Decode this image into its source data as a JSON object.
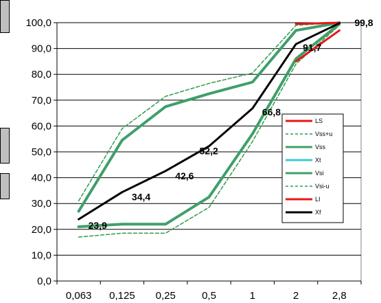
{
  "chart_data": {
    "type": "line",
    "categories": [
      "0,063",
      "0,125",
      "0,25",
      "0,5",
      "1",
      "2",
      "2,8"
    ],
    "y_ticks": [
      "0,0",
      "10,0",
      "20,0",
      "30,0",
      "40,0",
      "50,0",
      "60,0",
      "70,0",
      "80,0",
      "90,0",
      "100,0"
    ],
    "ylim": [
      0,
      100
    ],
    "grid": "horizontal",
    "legend_position": "right",
    "series": [
      {
        "name": "LS",
        "color": "#e8151b",
        "style": "solid",
        "width": 3,
        "values": [
          null,
          null,
          null,
          null,
          null,
          99.5,
          100
        ]
      },
      {
        "name": "Vss+u",
        "color": "#2e9b49",
        "style": "dashed",
        "width": 1.5,
        "values": [
          31,
          59,
          71.5,
          76.5,
          80.5,
          99,
          100
        ]
      },
      {
        "name": "Vss",
        "color": "#3f9f6a",
        "style": "solid",
        "width": 4,
        "values": [
          27,
          54.5,
          67.5,
          72.5,
          77,
          97,
          100
        ]
      },
      {
        "name": "Xt",
        "color": "#3fc9d4",
        "style": "solid",
        "width": 3,
        "values": [
          null,
          null,
          null,
          null,
          null,
          null,
          null
        ]
      },
      {
        "name": "Vsi",
        "color": "#3f9f6a",
        "style": "solid",
        "width": 4,
        "values": [
          21,
          22,
          22,
          32.5,
          57,
          86,
          99.5
        ]
      },
      {
        "name": "Vsi-u",
        "color": "#2e9b49",
        "style": "dashed",
        "width": 1.5,
        "values": [
          17,
          18.5,
          18.5,
          28.5,
          54,
          84,
          99
        ]
      },
      {
        "name": "LI",
        "color": "#e8151b",
        "style": "solid",
        "width": 3,
        "values": [
          null,
          null,
          null,
          null,
          null,
          85,
          97
        ]
      },
      {
        "name": "Xf",
        "color": "#000000",
        "style": "solid",
        "width": 3,
        "values": [
          23.9,
          34.4,
          42.6,
          52.2,
          66.8,
          91.7,
          99.8
        ]
      }
    ],
    "data_labels": [
      "23,9",
      "34,4",
      "42,6",
      "52,2",
      "66,8",
      "91,7",
      "99,8"
    ]
  }
}
